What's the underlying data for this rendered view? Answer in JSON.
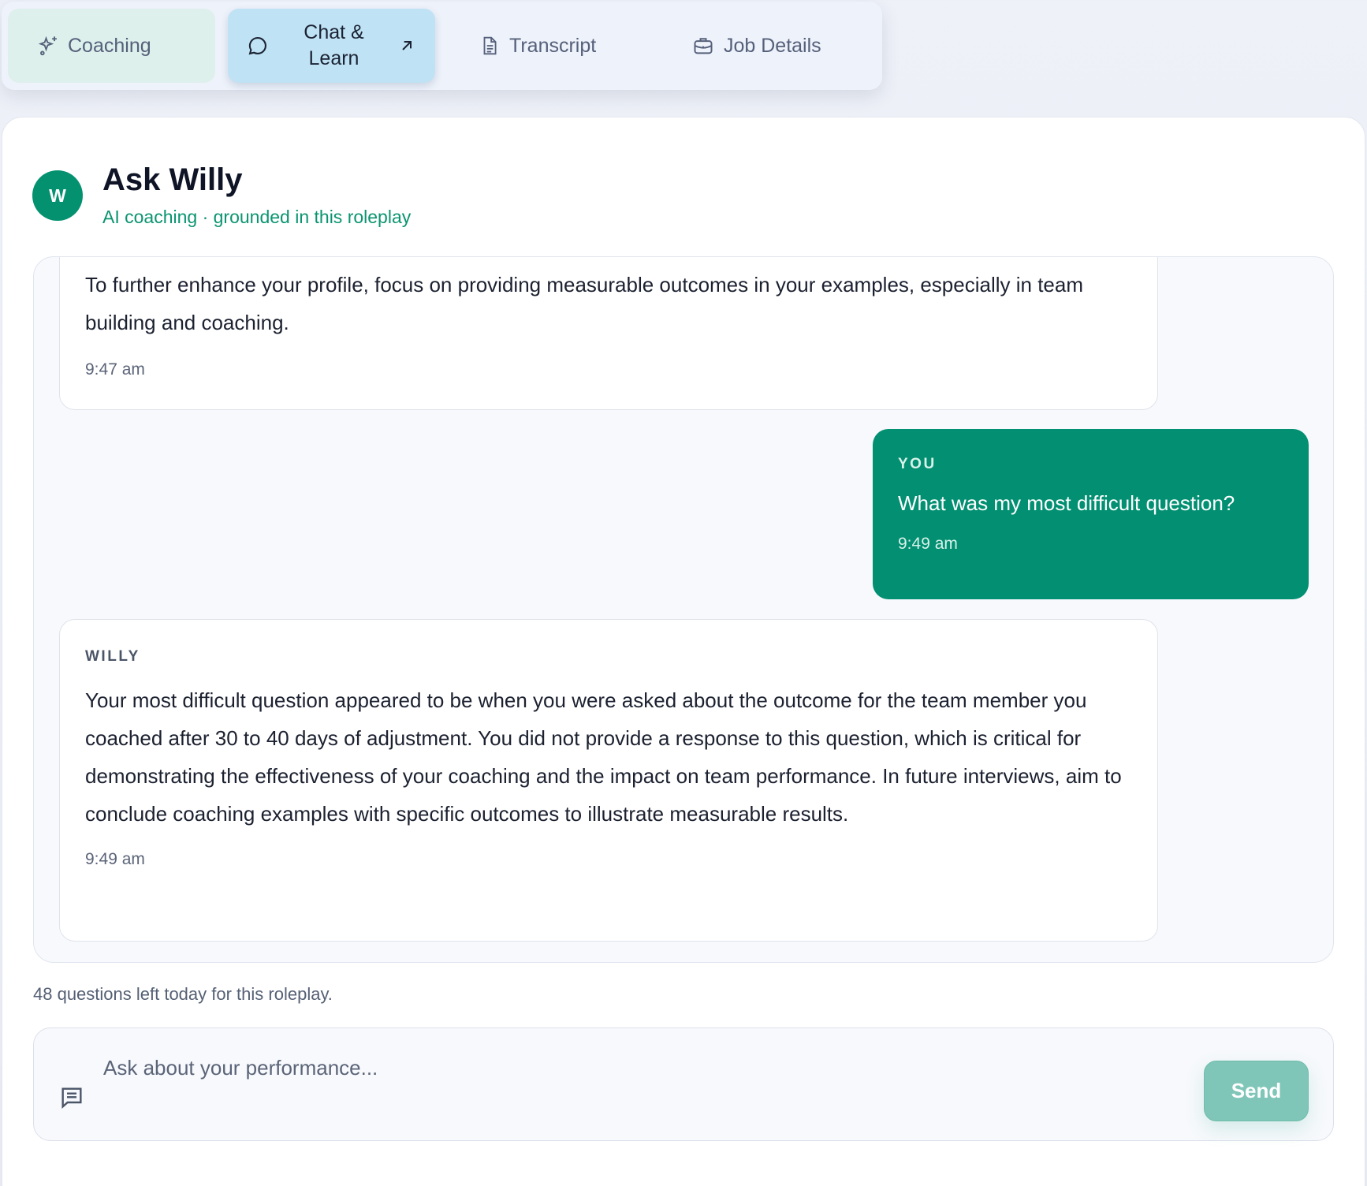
{
  "tabs": [
    {
      "label": "Coaching",
      "icon": "sparkles-icon"
    },
    {
      "label": "Chat & Learn",
      "icon": "chat-bubble-icon",
      "trailing_icon": "arrow-up-right-icon"
    },
    {
      "label": "Transcript",
      "icon": "document-icon"
    },
    {
      "label": "Job Details",
      "icon": "briefcase-icon"
    }
  ],
  "header": {
    "avatar_initial": "W",
    "title": "Ask Willy",
    "subtitle": "AI coaching · grounded in this roleplay"
  },
  "messages": [
    {
      "sender": "",
      "text": "To further enhance your profile, focus on providing measurable outcomes in your examples, especially in team building and coaching.",
      "time": "9:47 am"
    },
    {
      "sender": "YOU",
      "text": "What was my most difficult question?",
      "time": "9:49 am"
    },
    {
      "sender": "WILLY",
      "text": "Your most difficult question appeared to be when you were asked about the outcome for the team member you coached after 30 to 40 days of adjustment. You did not provide a response to this question, which is critical for demonstrating the effectiveness of your coaching and the impact on team performance. In future interviews, aim to conclude coaching examples with specific outcomes to illustrate measurable results.",
      "time": "9:49 am"
    }
  ],
  "quota_text": "48 questions left today for this roleplay.",
  "composer": {
    "placeholder": "Ask about your performance...",
    "value": "",
    "send_label": "Send"
  },
  "colors": {
    "accent": "#028f72",
    "active_tab": "#bfe2f5",
    "coaching_tab": "#ddf0ec",
    "send_disabled": "#7fc6b8"
  }
}
